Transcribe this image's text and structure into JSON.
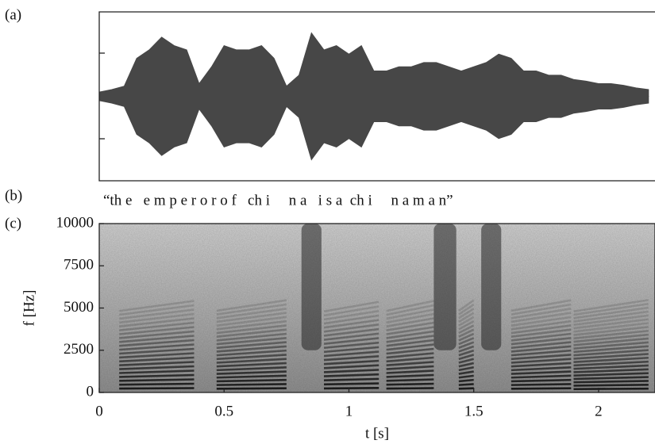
{
  "chart_data": [
    {
      "type": "waveform",
      "label": "(a)",
      "color": "#474747",
      "xlim": [
        0,
        2.226
      ],
      "ylim": [
        -1,
        1
      ],
      "x": [
        0,
        0.05,
        0.1,
        0.15,
        0.2,
        0.25,
        0.3,
        0.35,
        0.4,
        0.45,
        0.5,
        0.55,
        0.6,
        0.65,
        0.7,
        0.75,
        0.8,
        0.85,
        0.9,
        0.95,
        1.0,
        1.05,
        1.1,
        1.15,
        1.2,
        1.25,
        1.3,
        1.35,
        1.4,
        1.45,
        1.5,
        1.55,
        1.6,
        1.65,
        1.7,
        1.75,
        1.8,
        1.85,
        1.9,
        1.95,
        2.0,
        2.05,
        2.1,
        2.15,
        2.2
      ],
      "values": [
        0.05,
        0.08,
        0.12,
        0.45,
        0.55,
        0.7,
        0.6,
        0.55,
        0.15,
        0.35,
        0.6,
        0.55,
        0.55,
        0.6,
        0.45,
        0.12,
        0.25,
        0.75,
        0.55,
        0.6,
        0.5,
        0.6,
        0.3,
        0.3,
        0.35,
        0.35,
        0.4,
        0.4,
        0.35,
        0.3,
        0.35,
        0.4,
        0.5,
        0.45,
        0.3,
        0.3,
        0.25,
        0.25,
        0.2,
        0.18,
        0.15,
        0.15,
        0.13,
        0.1,
        0.08
      ]
    },
    {
      "type": "spectrogram",
      "label": "(c)",
      "xlabel": "t [s]",
      "ylabel": "f [Hz]",
      "xlim": [
        0,
        2.226
      ],
      "ylim": [
        0,
        10000
      ],
      "xticks": [
        0,
        0.5,
        1,
        1.5,
        2
      ],
      "yticks": [
        0,
        2500,
        5000,
        7500,
        10000
      ],
      "voiced": [
        {
          "x": [
            0.08,
            0.38
          ],
          "f0": 230
        },
        {
          "x": [
            0.47,
            0.75
          ],
          "f0": 220
        },
        {
          "x": [
            0.9,
            1.12
          ],
          "f0": 240
        },
        {
          "x": [
            1.15,
            1.34
          ],
          "f0": 230
        },
        {
          "x": [
            1.44,
            1.5
          ],
          "f0": 220
        },
        {
          "x": [
            1.65,
            1.89
          ],
          "f0": 220
        },
        {
          "x": [
            1.9,
            2.2
          ],
          "f0": 200
        }
      ],
      "fricatives": [
        {
          "x": [
            0.81,
            0.89
          ]
        },
        {
          "x": [
            1.34,
            1.43
          ]
        },
        {
          "x": [
            1.53,
            1.61
          ]
        }
      ]
    }
  ],
  "transcript": {
    "label": "(b)",
    "text": "“th e   e m p e r o r o f   ch i     n a   i s a  ch i     n a m a n”"
  }
}
